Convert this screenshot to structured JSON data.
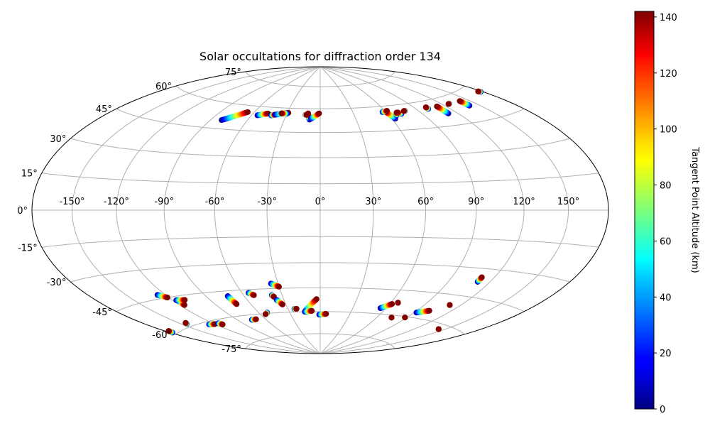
{
  "chart_data": {
    "type": "scatter",
    "projection": "hammer",
    "title": "Solar occultations for diffraction order 134",
    "longitude_ticks": [
      "-150°",
      "-120°",
      "-90°",
      "-60°",
      "-30°",
      "0°",
      "30°",
      "60°",
      "90°",
      "120°",
      "150°"
    ],
    "longitude_values": [
      -150,
      -120,
      -90,
      -60,
      -30,
      0,
      30,
      60,
      90,
      120,
      150
    ],
    "latitude_ticks": [
      "75°",
      "60°",
      "45°",
      "30°",
      "15°",
      "0°",
      "-15°",
      "-30°",
      "-45°",
      "-60°",
      "-75°"
    ],
    "latitude_values": [
      75,
      60,
      45,
      30,
      15,
      0,
      -15,
      -30,
      -45,
      -60,
      -75
    ],
    "grid": true,
    "colorbar": {
      "label": "Tangent Point Altitude (km)",
      "min": 0,
      "max": 142,
      "ticks": [
        "0",
        "20",
        "40",
        "60",
        "80",
        "100",
        "120",
        "140"
      ],
      "tick_values": [
        0,
        20,
        40,
        60,
        80,
        100,
        120,
        140
      ],
      "colormap": "jet"
    },
    "tracks": [
      {
        "lon": [
          -81,
          -66
        ],
        "lat": [
          50,
          56
        ]
      },
      {
        "lon": [
          -55,
          -47
        ],
        "lat": [
          54.5,
          56
        ]
      },
      {
        "lon": [
          -43,
          -40
        ],
        "lat": [
          55,
          55.5
        ]
      },
      {
        "lon": [
          -40,
          -29
        ],
        "lat": [
          55.5,
          57
        ]
      },
      {
        "lon": [
          -30,
          -35
        ],
        "lat": [
          56.5,
          56.5
        ]
      },
      {
        "lon": [
          -9,
          -11
        ],
        "lat": [
          53,
          57
        ]
      },
      {
        "lon": [
          -8,
          -1
        ],
        "lat": [
          53.5,
          57
        ]
      },
      {
        "lon": [
          -13,
          -12
        ],
        "lat": [
          56,
          56
        ]
      },
      {
        "lon": [
          63,
          60
        ],
        "lat": [
          52,
          56.5
        ]
      },
      {
        "lon": [
          57,
          62
        ],
        "lat": [
          56.5,
          57
        ]
      },
      {
        "lon": [
          67,
          69
        ],
        "lat": [
          54,
          55.5
        ]
      },
      {
        "lon": [
          72,
          70
        ],
        "lat": [
          54.5,
          55.5
        ]
      },
      {
        "lon": [
          78,
          77
        ],
        "lat": [
          56,
          56
        ]
      },
      {
        "lon": [
          101,
          101
        ],
        "lat": [
          55.5,
          56.5
        ]
      },
      {
        "lon": [
          112,
          112
        ],
        "lat": [
          51.5,
          56
        ]
      },
      {
        "lon": [
          127,
          126
        ],
        "lat": [
          56,
          56
        ]
      },
      {
        "lon": [
          141,
          141
        ],
        "lat": [
          53,
          56
        ]
      },
      {
        "lon": [
          178,
          177
        ],
        "lat": [
          56,
          56.5
        ]
      },
      {
        "lon": [
          -178,
          -177
        ],
        "lat": [
          -59,
          -58
        ]
      },
      {
        "lon": [
          -145,
          -144
        ],
        "lat": [
          -58.5,
          -58
        ]
      },
      {
        "lon": [
          -126,
          -121
        ],
        "lat": [
          -43,
          -45
        ]
      },
      {
        "lon": [
          -116,
          -116
        ],
        "lat": [
          -47.5,
          -50
        ]
      },
      {
        "lon": [
          -117,
          -110
        ],
        "lat": [
          -47,
          -47.5
        ]
      },
      {
        "lon": [
          -126,
          -120
        ],
        "lat": [
          -61.5,
          -62
        ]
      },
      {
        "lon": [
          -115,
          -113
        ],
        "lat": [
          -62,
          -63
        ]
      },
      {
        "lon": [
          -73,
          -72
        ],
        "lat": [
          -48,
          -53
        ]
      },
      {
        "lon": [
          -75,
          -70
        ],
        "lat": [
          -63,
          -63
        ]
      },
      {
        "lon": [
          -55,
          -52
        ],
        "lat": [
          -47,
          -48.5
        ]
      },
      {
        "lon": [
          -52,
          -55
        ],
        "lat": [
          -59.5,
          -60.5
        ]
      },
      {
        "lon": [
          -35,
          -30
        ],
        "lat": [
          -42,
          -44
        ]
      },
      {
        "lon": [
          -38,
          -37
        ],
        "lat": [
          -49,
          -50
        ]
      },
      {
        "lon": [
          -36,
          -33
        ],
        "lat": [
          -52,
          -55
        ]
      },
      {
        "lon": [
          -24,
          -22
        ],
        "lat": [
          -58,
          -58
        ]
      },
      {
        "lon": [
          -15,
          -3
        ],
        "lat": [
          -60,
          -52
        ]
      },
      {
        "lon": [
          -15,
          -8
        ],
        "lat": [
          -60,
          -59.5
        ]
      },
      {
        "lon": [
          -1,
          6
        ],
        "lat": [
          -62,
          -61.5
        ]
      },
      {
        "lon": [
          55,
          62
        ],
        "lat": [
          -56.5,
          -53.5
        ]
      },
      {
        "lon": [
          66,
          66
        ],
        "lat": [
          -52.5,
          -52.5
        ]
      },
      {
        "lon": [
          75,
          75
        ],
        "lat": [
          -61.5,
          -61.5
        ]
      },
      {
        "lon": [
          88,
          88
        ],
        "lat": [
          -60.5,
          -60.5
        ]
      },
      {
        "lon": [
          92,
          101
        ],
        "lat": [
          -57,
          -55
        ]
      },
      {
        "lon": [
          144,
          144
        ],
        "lat": [
          -62.5,
          -62.5
        ]
      },
      {
        "lon": [
          111,
          111
        ],
        "lat": [
          -37,
          -34.5
        ]
      },
      {
        "lon": [
          111,
          111
        ],
        "lat": [
          -50.5,
          -50.5
        ]
      }
    ]
  }
}
